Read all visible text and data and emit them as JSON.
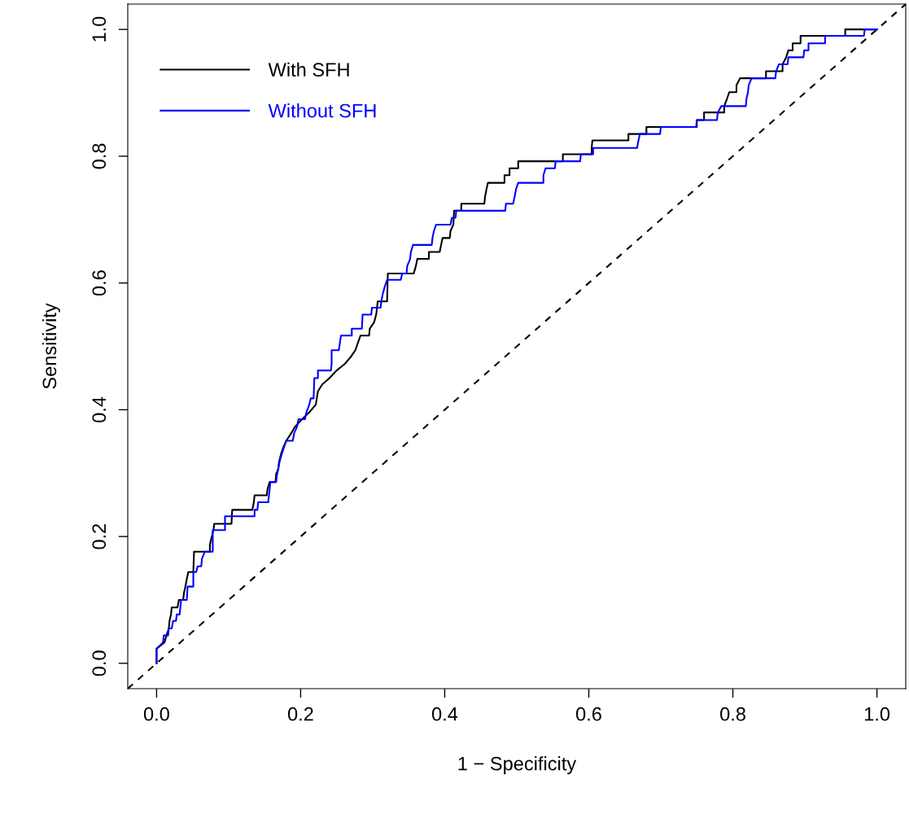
{
  "chart_data": {
    "type": "line",
    "xlabel": "1 − Specificity",
    "ylabel": "Sensitivity",
    "xlim": [
      -0.04,
      1.04
    ],
    "ylim": [
      -0.04,
      1.04
    ],
    "xticks": [
      {
        "value": 0,
        "label": "0.0"
      },
      {
        "value": 0.2,
        "label": "0.2"
      },
      {
        "value": 0.4,
        "label": "0.4"
      },
      {
        "value": 0.6,
        "label": "0.6"
      },
      {
        "value": 0.8,
        "label": "0.8"
      },
      {
        "value": 1,
        "label": "1.0"
      }
    ],
    "yticks": [
      {
        "value": 0,
        "label": "0.0"
      },
      {
        "value": 0.2,
        "label": "0.2"
      },
      {
        "value": 0.4,
        "label": "0.4"
      },
      {
        "value": 0.6,
        "label": "0.6"
      },
      {
        "value": 0.8,
        "label": "0.8"
      },
      {
        "value": 1,
        "label": "1.0"
      }
    ],
    "grid": false,
    "legend": "top left",
    "marker": "none",
    "series": [
      {
        "line_style": "dashed",
        "color": "#000000",
        "x": [
          -0.04,
          1.04
        ],
        "values": [
          -0.04,
          1.04
        ]
      },
      {
        "line_style": "solid",
        "name": "With SFH",
        "color": "#000000",
        "x": [
          0,
          0,
          0.011,
          0.014,
          0.017,
          0.018,
          0.02,
          0.021,
          0.029,
          0.031,
          0.037,
          0.038,
          0.04,
          0.042,
          0.044,
          0.051,
          0.052,
          0.074,
          0.074,
          0.076,
          0.079,
          0.08,
          0.104,
          0.105,
          0.133,
          0.135,
          0.136,
          0.153,
          0.154,
          0.157,
          0.165,
          0.166,
          0.169,
          0.17,
          0.173,
          0.176,
          0.18,
          0.187,
          0.192,
          0.202,
          0.212,
          0.221,
          0.224,
          0.23,
          0.24,
          0.25,
          0.261,
          0.27,
          0.276,
          0.283,
          0.295,
          0.296,
          0.302,
          0.305,
          0.307,
          0.32,
          0.321,
          0.357,
          0.36,
          0.362,
          0.378,
          0.378,
          0.393,
          0.395,
          0.397,
          0.407,
          0.408,
          0.412,
          0.413,
          0.423,
          0.423,
          0.455,
          0.456,
          0.458,
          0.46,
          0.483,
          0.483,
          0.49,
          0.49,
          0.502,
          0.502,
          0.564,
          0.564,
          0.604,
          0.604,
          0.605,
          0.655,
          0.655,
          0.68,
          0.68,
          0.75,
          0.75,
          0.76,
          0.76,
          0.788,
          0.788,
          0.792,
          0.795,
          0.805,
          0.805,
          0.81,
          0.846,
          0.846,
          0.869,
          0.869,
          0.874,
          0.877,
          0.883,
          0.883,
          0.894,
          0.894,
          0.956,
          0.956,
          1.0
        ],
        "values": [
          0,
          0.023,
          0.033,
          0.045,
          0.055,
          0.067,
          0.077,
          0.088,
          0.088,
          0.1,
          0.1,
          0.111,
          0.121,
          0.133,
          0.144,
          0.144,
          0.176,
          0.176,
          0.187,
          0.197,
          0.21,
          0.22,
          0.22,
          0.242,
          0.242,
          0.254,
          0.265,
          0.265,
          0.275,
          0.286,
          0.286,
          0.299,
          0.306,
          0.318,
          0.331,
          0.341,
          0.351,
          0.363,
          0.373,
          0.385,
          0.396,
          0.408,
          0.429,
          0.44,
          0.45,
          0.462,
          0.472,
          0.484,
          0.494,
          0.517,
          0.517,
          0.528,
          0.538,
          0.551,
          0.571,
          0.571,
          0.615,
          0.615,
          0.627,
          0.638,
          0.638,
          0.649,
          0.649,
          0.66,
          0.671,
          0.671,
          0.682,
          0.692,
          0.714,
          0.714,
          0.725,
          0.725,
          0.736,
          0.748,
          0.758,
          0.758,
          0.77,
          0.77,
          0.781,
          0.781,
          0.792,
          0.792,
          0.803,
          0.803,
          0.813,
          0.825,
          0.825,
          0.835,
          0.835,
          0.846,
          0.846,
          0.857,
          0.857,
          0.869,
          0.869,
          0.879,
          0.891,
          0.901,
          0.901,
          0.912,
          0.923,
          0.923,
          0.934,
          0.934,
          0.945,
          0.956,
          0.967,
          0.967,
          0.978,
          0.978,
          0.99,
          0.99,
          1.0,
          1.0
        ]
      },
      {
        "line_style": "solid",
        "name": "Without SFH",
        "color": "#0000ff",
        "x": [
          0,
          0,
          0.009,
          0.01,
          0.016,
          0.017,
          0.021,
          0.023,
          0.027,
          0.028,
          0.032,
          0.033,
          0.034,
          0.042,
          0.043,
          0.051,
          0.051,
          0.055,
          0.057,
          0.062,
          0.063,
          0.067,
          0.078,
          0.078,
          0.095,
          0.095,
          0.136,
          0.136,
          0.14,
          0.141,
          0.155,
          0.156,
          0.157,
          0.158,
          0.166,
          0.167,
          0.169,
          0.171,
          0.174,
          0.18,
          0.189,
          0.191,
          0.195,
          0.197,
          0.206,
          0.208,
          0.212,
          0.214,
          0.218,
          0.219,
          0.224,
          0.224,
          0.242,
          0.243,
          0.243,
          0.253,
          0.256,
          0.271,
          0.271,
          0.285,
          0.286,
          0.298,
          0.299,
          0.311,
          0.312,
          0.314,
          0.317,
          0.32,
          0.339,
          0.341,
          0.347,
          0.348,
          0.352,
          0.353,
          0.356,
          0.382,
          0.383,
          0.385,
          0.388,
          0.408,
          0.41,
          0.415,
          0.416,
          0.484,
          0.485,
          0.495,
          0.497,
          0.499,
          0.502,
          0.537,
          0.537,
          0.54,
          0.553,
          0.554,
          0.588,
          0.589,
          0.606,
          0.606,
          0.667,
          0.669,
          0.671,
          0.699,
          0.7,
          0.749,
          0.75,
          0.778,
          0.779,
          0.784,
          0.818,
          0.819,
          0.821,
          0.822,
          0.826,
          0.859,
          0.86,
          0.864,
          0.876,
          0.877,
          0.898,
          0.899,
          0.905,
          0.905,
          0.928,
          0.928,
          0.982,
          0.983,
          1.0
        ],
        "values": [
          0,
          0.023,
          0.033,
          0.044,
          0.044,
          0.055,
          0.055,
          0.067,
          0.067,
          0.077,
          0.077,
          0.088,
          0.1,
          0.1,
          0.121,
          0.121,
          0.144,
          0.144,
          0.153,
          0.153,
          0.165,
          0.176,
          0.176,
          0.21,
          0.21,
          0.232,
          0.232,
          0.242,
          0.242,
          0.254,
          0.254,
          0.265,
          0.275,
          0.286,
          0.286,
          0.296,
          0.308,
          0.319,
          0.331,
          0.351,
          0.351,
          0.363,
          0.373,
          0.385,
          0.385,
          0.396,
          0.408,
          0.418,
          0.418,
          0.45,
          0.45,
          0.462,
          0.462,
          0.472,
          0.494,
          0.494,
          0.517,
          0.517,
          0.528,
          0.528,
          0.55,
          0.55,
          0.561,
          0.561,
          0.571,
          0.583,
          0.595,
          0.605,
          0.605,
          0.615,
          0.615,
          0.627,
          0.638,
          0.649,
          0.66,
          0.66,
          0.671,
          0.682,
          0.692,
          0.692,
          0.703,
          0.703,
          0.714,
          0.714,
          0.725,
          0.725,
          0.736,
          0.748,
          0.758,
          0.758,
          0.77,
          0.781,
          0.781,
          0.792,
          0.792,
          0.803,
          0.803,
          0.813,
          0.813,
          0.825,
          0.835,
          0.835,
          0.846,
          0.846,
          0.857,
          0.857,
          0.869,
          0.879,
          0.879,
          0.891,
          0.901,
          0.912,
          0.923,
          0.923,
          0.934,
          0.945,
          0.945,
          0.956,
          0.956,
          0.967,
          0.967,
          0.978,
          0.978,
          0.99,
          0.99,
          1.0,
          1.0
        ]
      }
    ]
  }
}
